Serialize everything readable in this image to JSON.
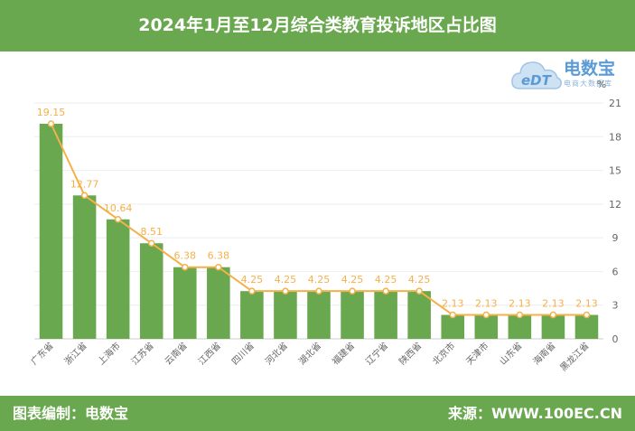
{
  "header": {
    "title": "2024年1月至12月综合类教育投诉地区占比图"
  },
  "logo": {
    "brand": "电数宝",
    "sub": "电商大数据库",
    "badge": "eDT"
  },
  "footer": {
    "left": "图表编制：电数宝",
    "right": "来源：WWW.100EC.CN"
  },
  "colors": {
    "bar": "#6aa84f",
    "line": "#f4b14a",
    "header": "#6aa84f",
    "axis_text": "#666666"
  },
  "chart_data": {
    "type": "bar",
    "title": "2024年1月至12月综合类教育投诉地区占比图",
    "unit": "%",
    "categories": [
      "广东省",
      "浙江省",
      "上海市",
      "江苏省",
      "云南省",
      "江西省",
      "四川省",
      "河北省",
      "湖北省",
      "福建省",
      "辽宁省",
      "陕西省",
      "北京市",
      "天津市",
      "山东省",
      "海南省",
      "黑龙江省"
    ],
    "series": [
      {
        "values": [
          19.15,
          12.77,
          10.64,
          8.51,
          6.38,
          6.38,
          4.25,
          4.25,
          4.25,
          4.25,
          4.25,
          4.25,
          2.13,
          2.13,
          2.13,
          2.13,
          2.13
        ]
      }
    ],
    "overlay": "line",
    "ylim": [
      0,
      21
    ],
    "yticks": [
      0,
      3,
      6,
      9,
      12,
      15,
      18,
      21
    ],
    "y_axis_side": "right",
    "grid": true
  }
}
